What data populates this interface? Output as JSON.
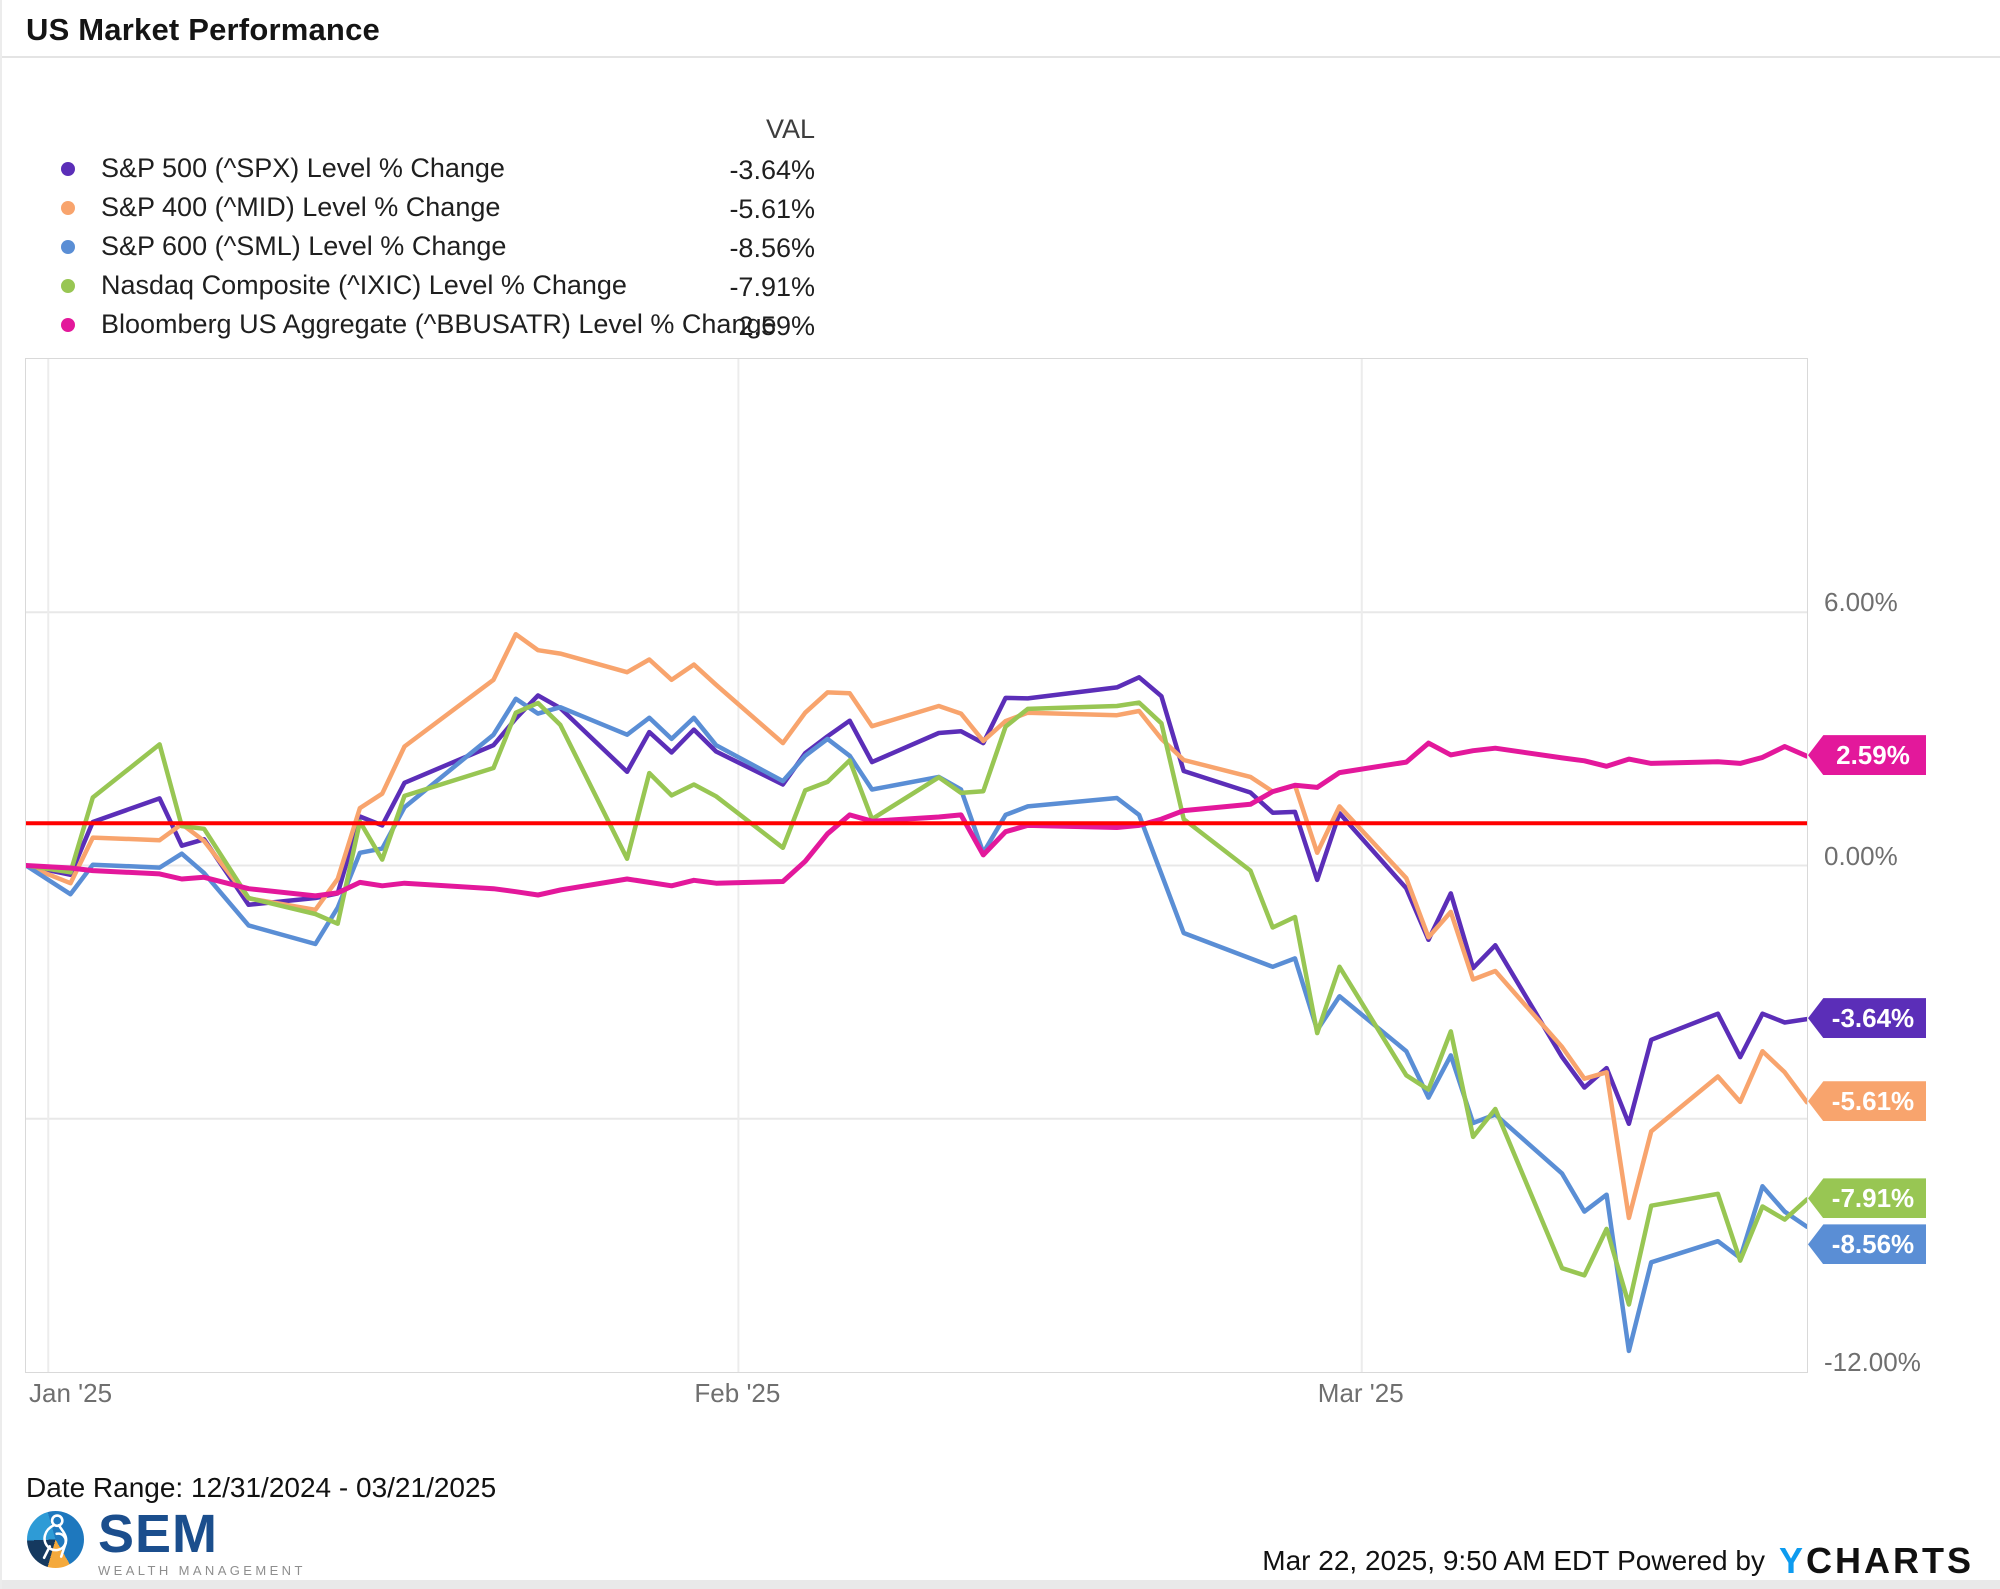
{
  "page": {
    "title": "US Market Performance"
  },
  "legend": {
    "val_header": "VAL",
    "series": [
      {
        "name": "S&P 500 (^SPX) Level % Change",
        "val": "-3.64%",
        "color": "#5B2EB8"
      },
      {
        "name": "S&P 400 (^MID) Level % Change",
        "val": "-5.61%",
        "color": "#F8A46D"
      },
      {
        "name": "S&P 600 (^SML) Level % Change",
        "val": "-8.56%",
        "color": "#5A8ED5"
      },
      {
        "name": "Nasdaq Composite (^IXIC) Level % Change",
        "val": "-7.91%",
        "color": "#98C653"
      },
      {
        "name": "Bloomberg US Aggregate (^BBUSATR) Level % Change",
        "val": "2.59%",
        "color": "#E3189B"
      }
    ]
  },
  "chart_data": {
    "type": "line",
    "title": "US Market Performance",
    "xlabel": "",
    "ylabel": "Level % Change",
    "grid": "on",
    "legend_position": "top-left",
    "x_axis": {
      "unit": "days since 12/31/2024",
      "start_date": "12/31/2024",
      "end_date": "03/21/2025",
      "max_day": 80,
      "ticks": [
        {
          "day": 1,
          "label": "Jan '25",
          "align": "left"
        },
        {
          "day": 32,
          "label": "Feb '25",
          "align": "center"
        },
        {
          "day": 60,
          "label": "Mar '25",
          "align": "center"
        }
      ]
    },
    "y_axis": {
      "min": -12,
      "max": 12,
      "unit": "%",
      "ticks": [
        {
          "value": 6,
          "label": "6.00%"
        },
        {
          "value": 0,
          "label": "0.00%"
        },
        {
          "value": -12,
          "label": "-12.00%"
        }
      ],
      "gridline_values": [
        6,
        0,
        -6
      ]
    },
    "reference_line": {
      "value": 1.0,
      "color": "#FF0000"
    },
    "days_since_start": [
      0,
      2,
      3,
      6,
      7,
      8,
      10,
      13,
      14,
      15,
      16,
      17,
      21,
      22,
      23,
      24,
      27,
      28,
      29,
      30,
      31,
      34,
      35,
      36,
      37,
      38,
      41,
      42,
      43,
      44,
      45,
      49,
      50,
      51,
      52,
      55,
      56,
      57,
      58,
      59,
      62,
      63,
      64,
      65,
      66,
      69,
      70,
      71,
      72,
      73,
      76,
      77,
      78,
      79,
      80
    ],
    "series": [
      {
        "id": "spx",
        "name": "S&P 500 (^SPX) Level % Change",
        "color": "#5B2EB8",
        "end_label": "-3.64%",
        "final_value": -3.64,
        "values": [
          0,
          -0.22,
          1.03,
          1.59,
          0.47,
          0.62,
          -0.93,
          -0.77,
          -0.66,
          1.16,
          0.95,
          1.96,
          2.85,
          3.48,
          4.03,
          3.73,
          2.22,
          3.16,
          2.68,
          3.22,
          2.7,
          1.92,
          2.66,
          3.06,
          3.43,
          2.45,
          3.14,
          3.18,
          2.9,
          3.97,
          3.96,
          4.22,
          4.46,
          4.01,
          2.24,
          1.73,
          1.25,
          1.27,
          -0.34,
          1.24,
          -0.54,
          -1.76,
          -0.66,
          -2.43,
          -1.89,
          -4.54,
          -5.26,
          -4.8,
          -6.12,
          -4.13,
          -3.51,
          -4.54,
          -3.51,
          -3.72,
          -3.64
        ]
      },
      {
        "id": "mid",
        "name": "S&P 400 (^MID) Level % Change",
        "color": "#F8A46D",
        "end_label": "-5.61%",
        "final_value": -5.61,
        "values": [
          0,
          -0.42,
          0.66,
          0.6,
          0.98,
          0.58,
          -0.78,
          -1.05,
          -0.32,
          1.36,
          1.7,
          2.82,
          4.4,
          5.48,
          5.1,
          5.02,
          4.58,
          4.88,
          4.4,
          4.76,
          4.28,
          2.9,
          3.62,
          4.1,
          4.08,
          3.3,
          3.78,
          3.6,
          2.95,
          3.42,
          3.62,
          3.56,
          3.66,
          3.0,
          2.5,
          2.1,
          1.75,
          1.9,
          0.3,
          1.4,
          -0.3,
          -1.7,
          -1.1,
          -2.7,
          -2.5,
          -4.3,
          -5.05,
          -4.9,
          -8.35,
          -6.3,
          -5.0,
          -5.6,
          -4.4,
          -4.9,
          -5.61
        ]
      },
      {
        "id": "sml",
        "name": "S&P 600 (^SML) Level % Change",
        "color": "#5A8ED5",
        "end_label": "-8.56%",
        "final_value": -8.56,
        "values": [
          0,
          -0.68,
          0.02,
          -0.05,
          0.28,
          -0.18,
          -1.42,
          -1.86,
          -1.0,
          0.3,
          0.4,
          1.38,
          3.1,
          3.95,
          3.6,
          3.75,
          3.1,
          3.5,
          3.0,
          3.5,
          2.85,
          2.0,
          2.6,
          3.0,
          2.6,
          1.8,
          2.1,
          1.8,
          0.3,
          1.2,
          1.4,
          1.6,
          1.2,
          -0.2,
          -1.6,
          -2.2,
          -2.4,
          -2.2,
          -3.9,
          -3.1,
          -4.4,
          -5.5,
          -4.5,
          -6.1,
          -5.9,
          -7.3,
          -8.2,
          -7.8,
          -11.5,
          -9.4,
          -8.9,
          -9.3,
          -7.6,
          -8.2,
          -8.56
        ]
      },
      {
        "id": "ixic",
        "name": "Nasdaq Composite (^IXIC) Level % Change",
        "color": "#98C653",
        "end_label": "-7.91%",
        "final_value": -7.91,
        "values": [
          0,
          -0.16,
          1.61,
          2.87,
          0.93,
          0.87,
          -0.77,
          -1.15,
          -1.38,
          1.04,
          0.14,
          1.65,
          2.31,
          3.62,
          3.85,
          3.33,
          0.16,
          2.19,
          1.66,
          1.92,
          1.64,
          0.42,
          1.78,
          1.98,
          2.49,
          1.1,
          2.09,
          1.72,
          1.76,
          3.29,
          3.71,
          3.78,
          3.86,
          3.37,
          1.1,
          -0.12,
          -1.47,
          -1.22,
          -3.97,
          -2.4,
          -4.97,
          -5.31,
          -3.93,
          -6.43,
          -5.77,
          -9.54,
          -9.71,
          -8.61,
          -10.4,
          -8.06,
          -7.78,
          -9.36,
          -8.08,
          -8.39,
          -7.91
        ]
      },
      {
        "id": "agg",
        "name": "Bloomberg US Aggregate (^BBUSATR) Level % Change",
        "color": "#E3189B",
        "end_label": "2.59%",
        "final_value": 2.59,
        "values": [
          0,
          -0.06,
          -0.12,
          -0.2,
          -0.32,
          -0.28,
          -0.55,
          -0.72,
          -0.65,
          -0.4,
          -0.48,
          -0.42,
          -0.55,
          -0.62,
          -0.7,
          -0.58,
          -0.32,
          -0.4,
          -0.48,
          -0.35,
          -0.42,
          -0.38,
          0.1,
          0.75,
          1.2,
          1.05,
          1.15,
          1.2,
          0.25,
          0.8,
          0.95,
          0.9,
          0.95,
          1.1,
          1.3,
          1.45,
          1.75,
          1.9,
          1.85,
          2.2,
          2.45,
          2.9,
          2.62,
          2.72,
          2.78,
          2.55,
          2.48,
          2.35,
          2.52,
          2.42,
          2.46,
          2.42,
          2.56,
          2.82,
          2.59
        ]
      }
    ]
  },
  "footer": {
    "date_range": "Date Range: 12/31/2024 - 03/21/2025",
    "brand_name": "SEM",
    "brand_sub": "WEALTH MANAGEMENT",
    "timestamp": "Mar 22, 2025, 9:50 AM EDT",
    "powered_by": "Powered by",
    "ycharts_y": "Y",
    "ycharts_rest": "CHARTS",
    "colors": {
      "ycharts_blue": "#0D9BEF",
      "sem_navy": "#1B4E8D"
    }
  }
}
